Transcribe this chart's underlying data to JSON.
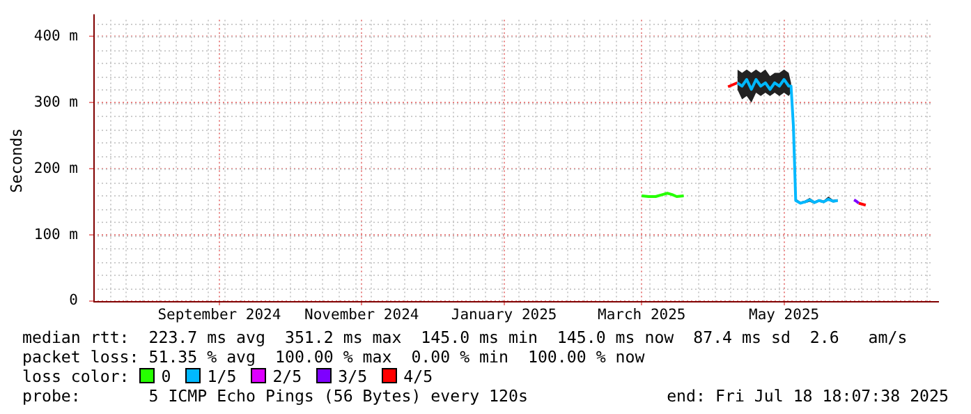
{
  "chart_data": {
    "type": "line",
    "ylabel": "Seconds",
    "legend_title": "loss color:",
    "legend": "bottom",
    "grid": true,
    "marker": "none",
    "line_style": "solid",
    "xlim": [
      "2024-07-23",
      "2025-07-18"
    ],
    "xticks": [
      {
        "value": "2024-09-15",
        "label": "September 2024"
      },
      {
        "value": "2024-11-15",
        "label": "November 2024"
      },
      {
        "value": "2025-01-15",
        "label": "January 2025"
      },
      {
        "value": "2025-03-15",
        "label": "March 2025"
      },
      {
        "value": "2025-05-15",
        "label": "May 2025"
      }
    ],
    "ylim": [
      0,
      425
    ],
    "yticks": [
      {
        "value": 0,
        "label": "0"
      },
      {
        "value": 100,
        "label": "100 m"
      },
      {
        "value": 200,
        "label": "200 m"
      },
      {
        "value": 300,
        "label": "300 m"
      },
      {
        "value": 400,
        "label": "400 m"
      }
    ],
    "series": [
      {
        "name": "0",
        "color": "#26ff00",
        "x": [
          "2025-03-15",
          "2025-03-18",
          "2025-03-21",
          "2025-03-24",
          "2025-03-26",
          "2025-03-28",
          "2025-03-30",
          "2025-04-02"
        ],
        "values": [
          159,
          158,
          158,
          161,
          163,
          161,
          158,
          159
        ]
      },
      {
        "name": "1/5",
        "color": "#00b8ff",
        "x": [
          "2025-04-25",
          "2025-04-27",
          "2025-04-29",
          "2025-05-01",
          "2025-05-03",
          "2025-05-05",
          "2025-05-07",
          "2025-05-09",
          "2025-05-11",
          "2025-05-13",
          "2025-05-15",
          "2025-05-17",
          "2025-05-18",
          "2025-05-19",
          "2025-05-20",
          "2025-05-22",
          "2025-05-24",
          "2025-05-26",
          "2025-05-28",
          "2025-05-30",
          "2025-06-01",
          "2025-06-03",
          "2025-06-05",
          "2025-06-07"
        ],
        "values": [
          330,
          325,
          335,
          320,
          335,
          325,
          330,
          320,
          330,
          325,
          335,
          325,
          325,
          265,
          152,
          148,
          150,
          153,
          149,
          152,
          150,
          154,
          151,
          152
        ],
        "lower": [
          320,
          305,
          310,
          300,
          315,
          310,
          315,
          310,
          315,
          310,
          315,
          310,
          315,
          260,
          150,
          147,
          148,
          150,
          147,
          150,
          148,
          152,
          149,
          150
        ],
        "upper": [
          350,
          345,
          350,
          345,
          350,
          345,
          350,
          340,
          345,
          345,
          350,
          345,
          330,
          270,
          155,
          150,
          152,
          156,
          151,
          154,
          152,
          158,
          153,
          154
        ]
      },
      {
        "name": "2/5",
        "color": "#dd00ff"
      },
      {
        "name": "3/5",
        "color": "#7e00ff",
        "x": [
          "2025-06-14",
          "2025-06-15",
          "2025-06-16"
        ],
        "values": [
          153,
          151,
          148
        ]
      },
      {
        "name": "4/5",
        "color": "#ff0000",
        "x": [
          "2025-04-21",
          "2025-04-25",
          "2025-05-20",
          "2025-06-16",
          "2025-06-19"
        ],
        "values": [
          324,
          330,
          null,
          148,
          145
        ]
      }
    ],
    "annotations": [
      "median rtt:  223.7 ms avg  351.2 ms max  145.0 ms min  145.0 ms now  87.4 ms sd  2.6   am/s",
      "packet loss: 51.35 % avg  100.00 % max  0.00 % min  100.00 % now",
      "probe:       5 ICMP Echo Pings (56 Bytes) every 120s",
      "end: Fri Jul 18 18:07:38 2025"
    ]
  }
}
